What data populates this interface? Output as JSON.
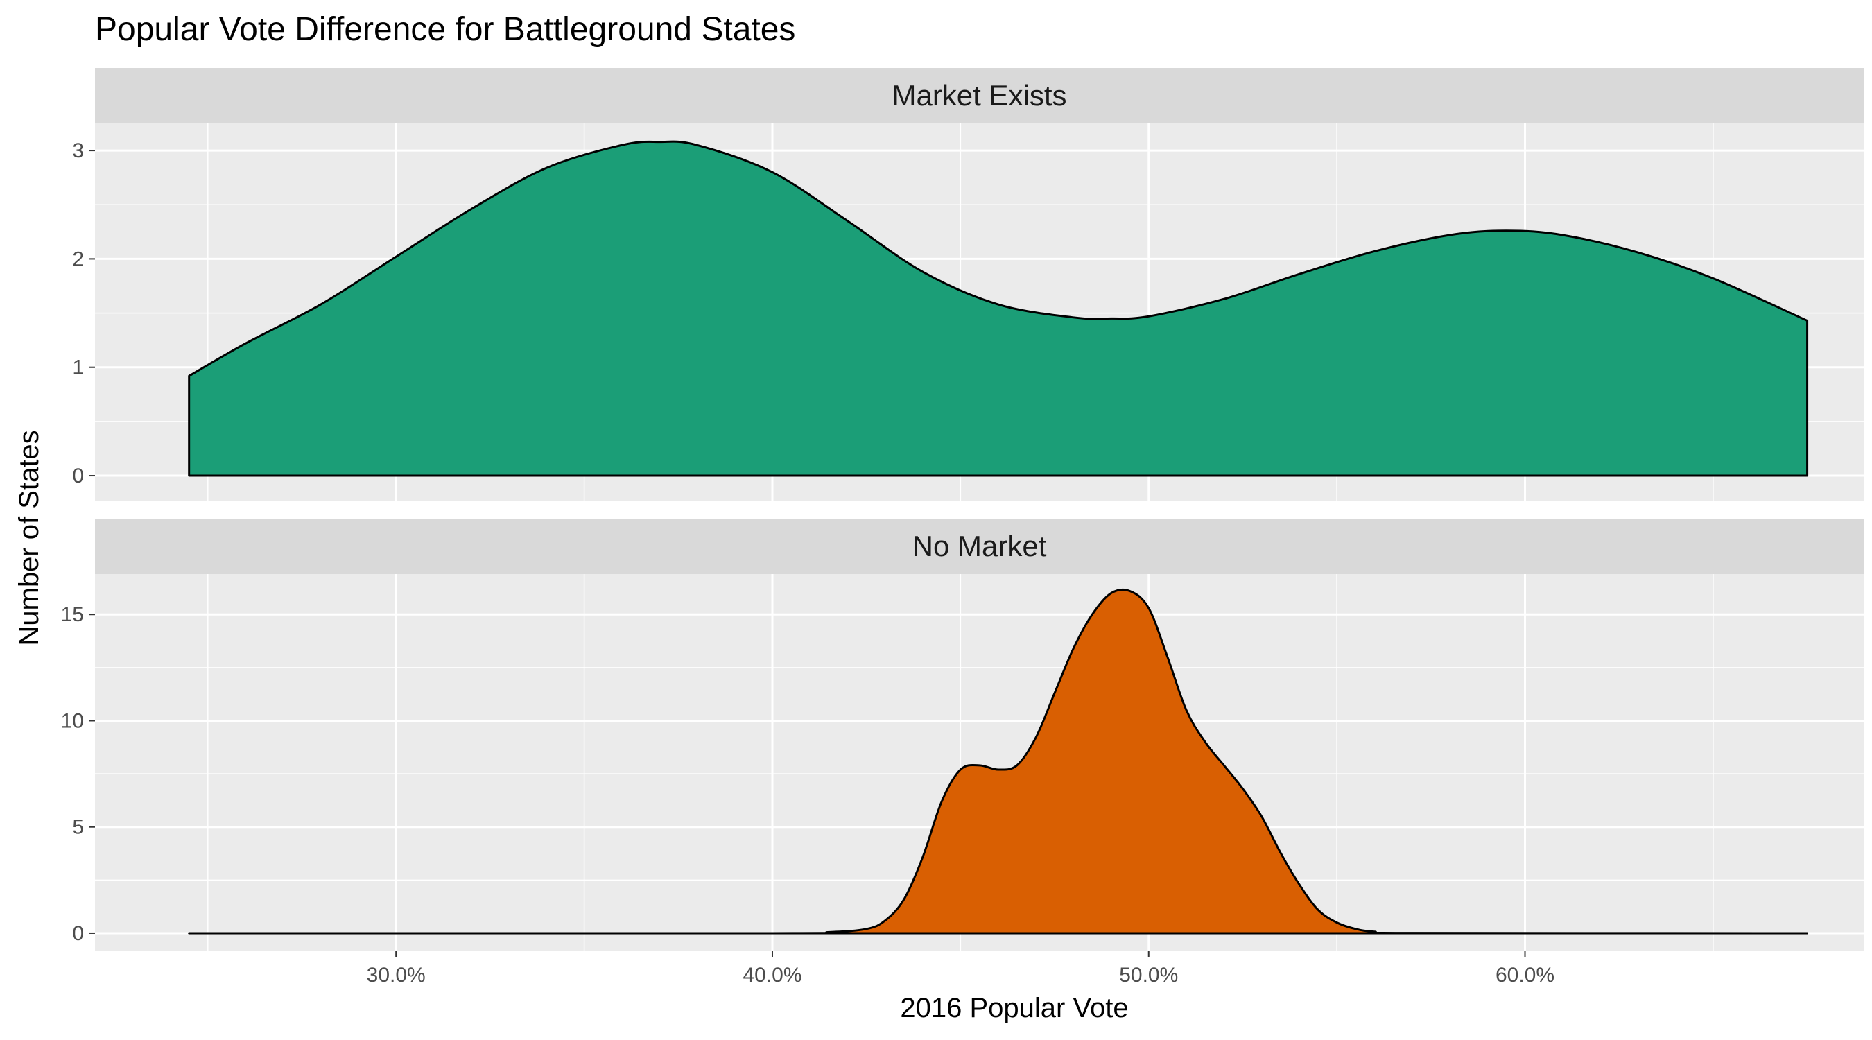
{
  "chart_data": {
    "type": "area",
    "title": "Popular Vote Difference for Battleground States",
    "xlabel": "2016 Popular Vote",
    "ylabel": "Number of States",
    "xlim": [
      0.22,
      0.69
    ],
    "x_ticks": [
      0.3,
      0.4,
      0.5,
      0.6
    ],
    "x_tick_labels": [
      "30.0%",
      "40.0%",
      "50.0%",
      "60.0%"
    ],
    "grid": true,
    "panels": [
      {
        "strip_label": "Market Exists",
        "color": "#1b9e77",
        "ylim": [
          -0.23,
          3.25
        ],
        "y_ticks": [
          0,
          1,
          2,
          3
        ],
        "y_tick_labels": [
          "0",
          "1",
          "2",
          "3"
        ],
        "x": [
          0.245,
          0.26,
          0.28,
          0.3,
          0.32,
          0.34,
          0.36,
          0.37,
          0.38,
          0.4,
          0.42,
          0.44,
          0.46,
          0.48,
          0.49,
          0.5,
          0.52,
          0.54,
          0.56,
          0.58,
          0.595,
          0.61,
          0.63,
          0.65,
          0.675
        ],
        "y": [
          0.92,
          1.22,
          1.58,
          2.02,
          2.46,
          2.84,
          3.05,
          3.08,
          3.05,
          2.8,
          2.35,
          1.88,
          1.58,
          1.46,
          1.45,
          1.47,
          1.63,
          1.86,
          2.07,
          2.22,
          2.26,
          2.22,
          2.06,
          1.82,
          1.43
        ]
      },
      {
        "strip_label": "No Market",
        "color": "#d95f02",
        "ylim": [
          -0.85,
          16.9
        ],
        "y_ticks": [
          0,
          5,
          10,
          15
        ],
        "y_tick_labels": [
          "0",
          "5",
          "10",
          "15"
        ],
        "x": [
          0.245,
          0.4,
          0.415,
          0.425,
          0.43,
          0.435,
          0.44,
          0.445,
          0.45,
          0.455,
          0.46,
          0.465,
          0.47,
          0.475,
          0.48,
          0.485,
          0.49,
          0.495,
          0.5,
          0.505,
          0.51,
          0.515,
          0.52,
          0.525,
          0.53,
          0.535,
          0.54,
          0.545,
          0.55,
          0.555,
          0.56,
          0.57,
          0.675
        ],
        "y": [
          0,
          0,
          0.05,
          0.2,
          0.6,
          1.6,
          3.6,
          6.2,
          7.7,
          7.9,
          7.7,
          7.9,
          9.2,
          11.3,
          13.4,
          15.0,
          16.0,
          16.1,
          15.3,
          13.0,
          10.5,
          9.0,
          7.9,
          6.8,
          5.5,
          3.8,
          2.3,
          1.1,
          0.5,
          0.2,
          0.07,
          0.01,
          0
        ]
      }
    ]
  }
}
